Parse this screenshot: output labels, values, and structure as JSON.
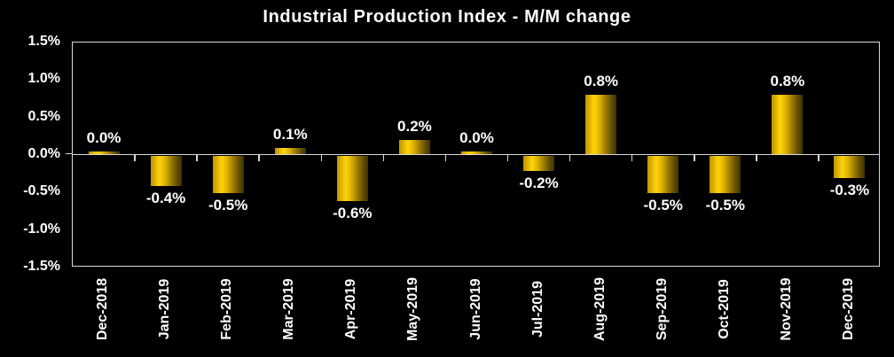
{
  "title": "Industrial Production Index - M/M change",
  "colors": {
    "background": "#000000",
    "axis_line": "#d9d9d9",
    "text": "#ffffff",
    "bar_gold_left": "#bd9400",
    "bar_gold_bright": "#ffd40a",
    "bar_gold_dark": "#3f3200"
  },
  "chart_data": {
    "type": "bar",
    "title": "Industrial Production Index - M/M change",
    "categories": [
      "Dec-2018",
      "Jan-2019",
      "Feb-2019",
      "Mar-2019",
      "Apr-2019",
      "May-2019",
      "Jun-2019",
      "Jul-2019",
      "Aug-2019",
      "Sep-2019",
      "Oct-2019",
      "Nov-2019",
      "Dec-2019"
    ],
    "values": [
      0.0,
      -0.4,
      -0.5,
      0.1,
      -0.6,
      0.2,
      0.0,
      -0.2,
      0.8,
      -0.5,
      -0.5,
      0.8,
      -0.3
    ],
    "point_labels": [
      "0.0%",
      "-0.4%",
      "-0.5%",
      "0.1%",
      "-0.6%",
      "0.2%",
      "0.0%",
      "-0.2%",
      "0.8%",
      "-0.5%",
      "-0.5%",
      "0.8%",
      "-0.3%"
    ],
    "xlabel": "",
    "ylabel": "",
    "unit": "%",
    "ylim": [
      -1.5,
      1.5
    ],
    "yticks": [
      1.5,
      1.0,
      0.5,
      0.0,
      -0.5,
      -1.0,
      -1.5
    ],
    "ytick_labels": [
      "1.5%",
      "1.0%",
      "0.5%",
      "0.0%",
      "-0.5%",
      "-1.0%",
      "-1.5%"
    ],
    "grid": false,
    "legend": null,
    "bar_style": "gold-gradient-cylinder",
    "background": "black"
  }
}
